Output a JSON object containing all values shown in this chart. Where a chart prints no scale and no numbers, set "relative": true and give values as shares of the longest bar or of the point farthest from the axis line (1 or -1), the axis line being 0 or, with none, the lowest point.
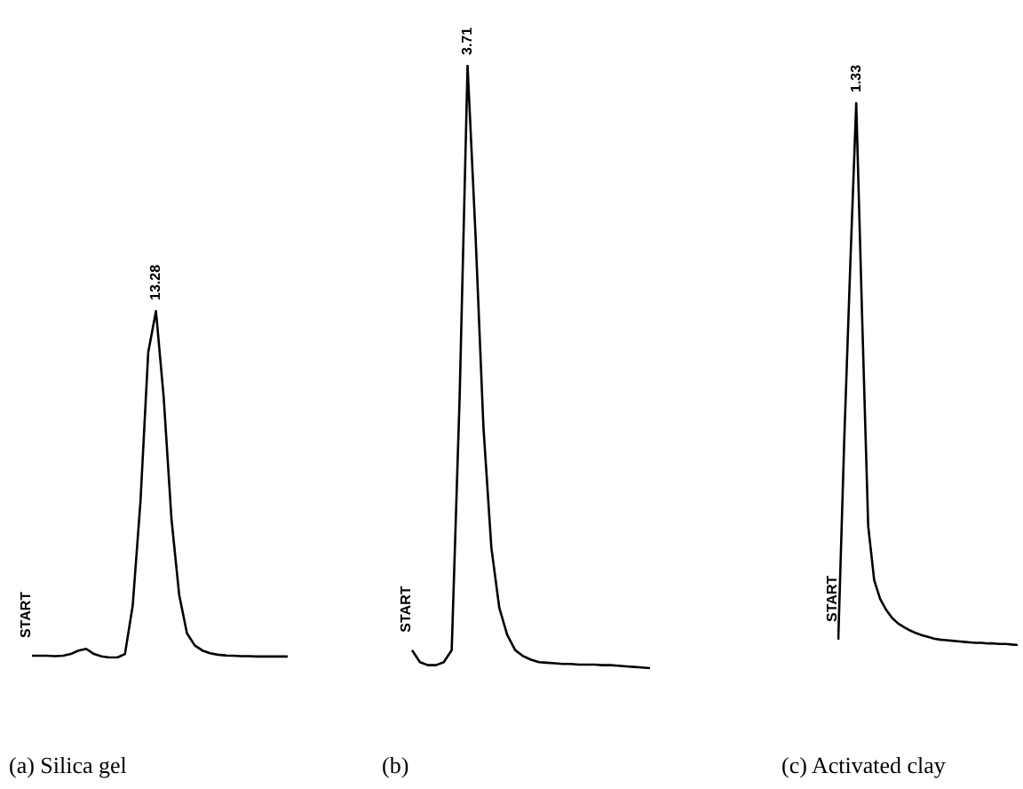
{
  "chart_data": [
    {
      "type": "line",
      "title": "(a) Silica gel",
      "relative": true,
      "tick_labels": false,
      "marker": "none",
      "color": "#000000",
      "categories": [
        null,
        null,
        null,
        null,
        null,
        null,
        null,
        null,
        null,
        null,
        null,
        null,
        null,
        null,
        null,
        null,
        null,
        null,
        null,
        null,
        null,
        null,
        null,
        null,
        null,
        null,
        null,
        null,
        null,
        null,
        null,
        null,
        null,
        null
      ],
      "values": [
        0.005,
        0.005,
        0.005,
        0.004,
        0.005,
        0.01,
        0.02,
        0.025,
        0.01,
        0.003,
        0,
        0,
        0.01,
        0.15,
        0.45,
        0.88,
        1,
        0.75,
        0.4,
        0.18,
        0.07,
        0.035,
        0.02,
        0.012,
        0.008,
        0.006,
        0.005,
        0.004,
        0.004,
        0.003,
        0.003,
        0.003,
        0.003,
        0.003
      ],
      "annotations": [
        {
          "text": "START",
          "y": 0.005
        },
        {
          "text": "13.28",
          "y": 1
        }
      ]
    },
    {
      "type": "line",
      "title": "(b)",
      "relative": true,
      "tick_labels": false,
      "marker": "none",
      "color": "#000000",
      "categories": [
        null,
        null,
        null,
        null,
        null,
        null,
        null,
        null,
        null,
        null,
        null,
        null,
        null,
        null,
        null,
        null,
        null,
        null,
        null,
        null,
        null,
        null,
        null,
        null,
        null,
        null,
        null,
        null,
        null,
        null,
        null
      ],
      "values": [
        0.03,
        0.01,
        0.005,
        0.005,
        0.01,
        0.03,
        0.45,
        1,
        0.72,
        0.4,
        0.2,
        0.1,
        0.055,
        0.03,
        0.02,
        0.014,
        0.01,
        0.009,
        0.008,
        0.007,
        0.007,
        0.006,
        0.006,
        0.006,
        0.005,
        0.005,
        0.004,
        0.003,
        0.002,
        0.001,
        0
      ],
      "annotations": [
        {
          "text": "START",
          "y": 0.03
        },
        {
          "text": "3.71",
          "y": 1
        }
      ]
    },
    {
      "type": "line",
      "title": "(c) Activated clay",
      "relative": true,
      "tick_labels": false,
      "marker": "none",
      "color": "#000000",
      "categories": [
        null,
        null,
        null,
        null,
        null,
        null,
        null,
        null,
        null,
        null,
        null,
        null,
        null,
        null,
        null,
        null,
        null,
        null,
        null,
        null,
        null,
        null,
        null,
        null,
        null,
        null,
        null,
        null,
        null,
        null,
        null
      ],
      "values": [
        0.01,
        0.38,
        0.7,
        1,
        0.6,
        0.22,
        0.12,
        0.085,
        0.065,
        0.05,
        0.04,
        0.033,
        0.027,
        0.022,
        0.018,
        0.015,
        0.012,
        0.01,
        0.009,
        0.008,
        0.007,
        0.006,
        0.005,
        0.004,
        0.004,
        0.003,
        0.003,
        0.002,
        0.002,
        0.001,
        0
      ],
      "annotations": [
        {
          "text": "START",
          "y": 0.01
        },
        {
          "text": "1.33",
          "y": 1
        }
      ]
    }
  ]
}
